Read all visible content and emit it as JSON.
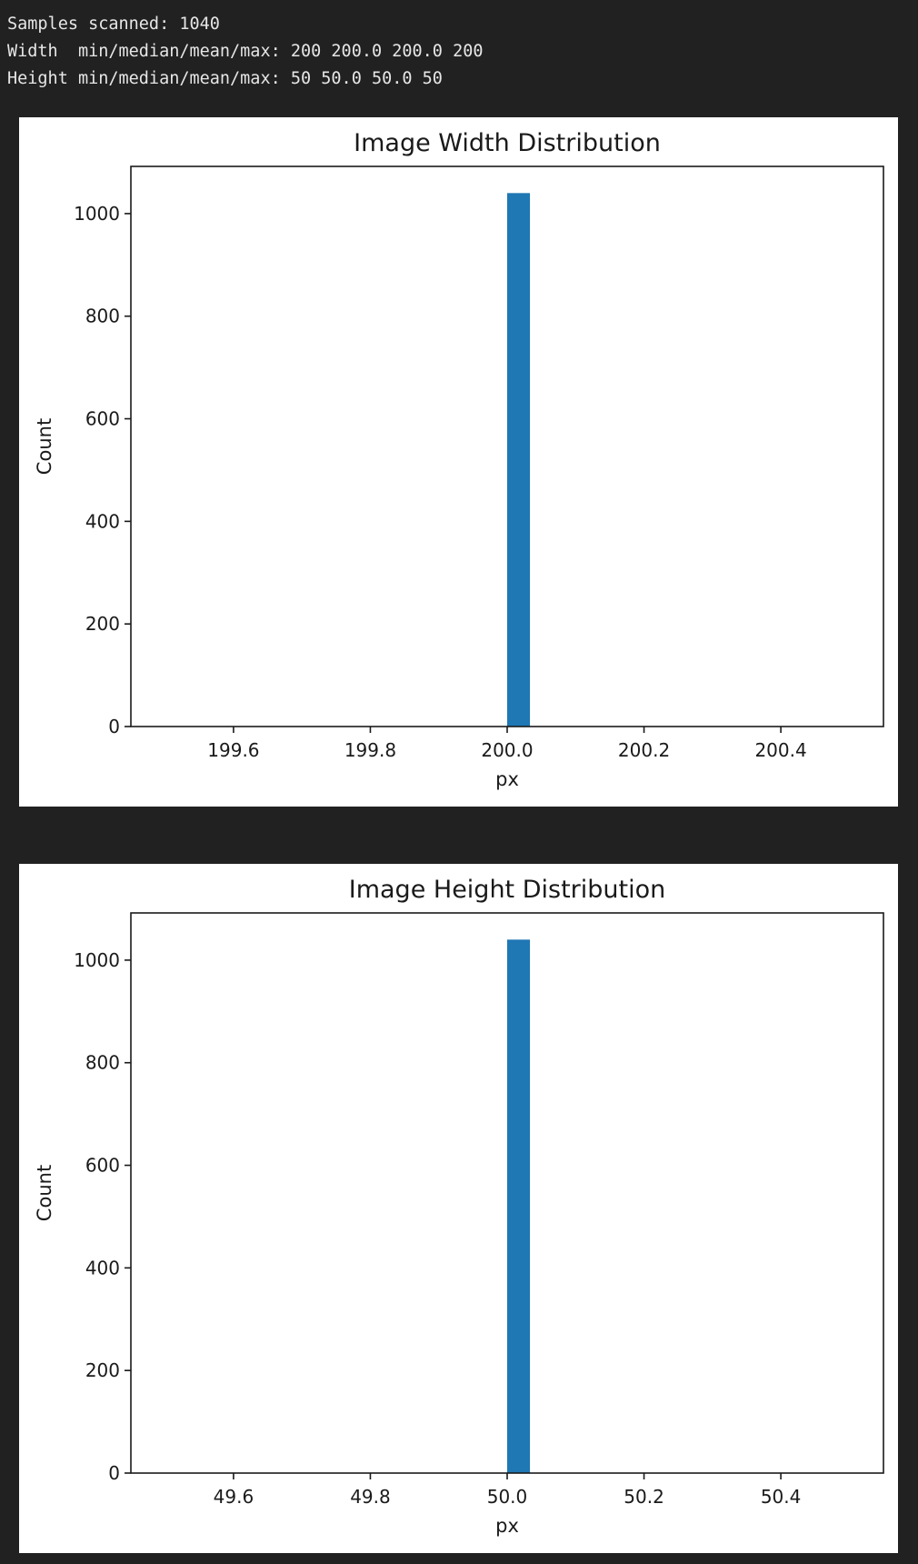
{
  "output": {
    "lines": [
      "Samples scanned: 1040",
      "Width  min/median/mean/max: 200 200.0 200.0 200",
      "Height min/median/mean/max: 50 50.0 50.0 50"
    ]
  },
  "chart_data": [
    {
      "type": "bar",
      "title": "Image Width Distribution",
      "xlabel": "px",
      "ylabel": "Count",
      "xlim": [
        199.45,
        200.55
      ],
      "ylim": [
        0,
        1092
      ],
      "xticks": [
        199.6,
        199.8,
        200.0,
        200.2,
        200.4
      ],
      "xtick_labels": [
        "199.6",
        "199.8",
        "200.0",
        "200.2",
        "200.4"
      ],
      "yticks": [
        0,
        200,
        400,
        600,
        800,
        1000
      ],
      "ytick_labels": [
        "0",
        "200",
        "400",
        "600",
        "800",
        "1000"
      ],
      "bins": [
        {
          "x0": 200.0,
          "x1": 200.0333,
          "count": 1040
        }
      ],
      "grid": false,
      "color": "#1f77b4"
    },
    {
      "type": "bar",
      "title": "Image Height Distribution",
      "xlabel": "px",
      "ylabel": "Count",
      "xlim": [
        49.45,
        50.55
      ],
      "ylim": [
        0,
        1092
      ],
      "xticks": [
        49.6,
        49.8,
        50.0,
        50.2,
        50.4
      ],
      "xtick_labels": [
        "49.6",
        "49.8",
        "50.0",
        "50.2",
        "50.4"
      ],
      "yticks": [
        0,
        200,
        400,
        600,
        800,
        1000
      ],
      "ytick_labels": [
        "0",
        "200",
        "400",
        "600",
        "800",
        "1000"
      ],
      "bins": [
        {
          "x0": 50.0,
          "x1": 50.0333,
          "count": 1040
        }
      ],
      "grid": false,
      "color": "#1f77b4"
    }
  ]
}
